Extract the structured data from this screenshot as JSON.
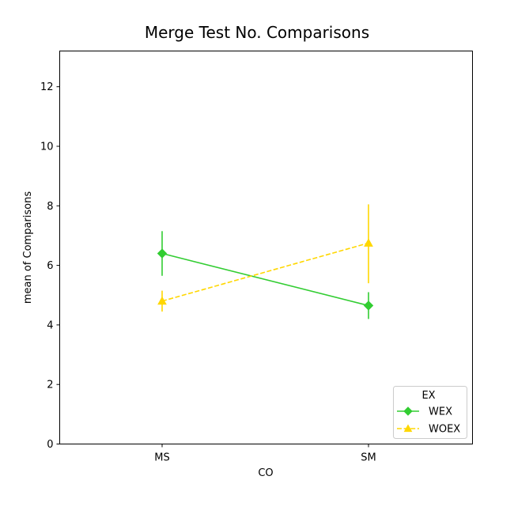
{
  "chart_data": {
    "type": "line",
    "title": "Merge Test No. Comparisons",
    "xlabel": "CO",
    "ylabel": "mean of Comparisons",
    "categories": [
      "MS",
      "SM"
    ],
    "ylim": [
      0,
      13.2
    ],
    "yticks": [
      0,
      2,
      4,
      6,
      8,
      10,
      12
    ],
    "grid": false,
    "legend": {
      "title": "EX",
      "placement": "bottom-right"
    },
    "series": [
      {
        "name": "WEX",
        "values": [
          6.4,
          4.65
        ],
        "err_low": [
          5.65,
          4.2
        ],
        "err_high": [
          7.15,
          5.1
        ],
        "color": "#32cd32",
        "marker": "diamond",
        "linestyle": "solid"
      },
      {
        "name": "WOEX",
        "values": [
          4.8,
          6.75
        ],
        "err_low": [
          4.45,
          5.4
        ],
        "err_high": [
          5.15,
          8.05
        ],
        "color": "#ffd700",
        "marker": "triangle",
        "linestyle": "dashed"
      }
    ]
  }
}
